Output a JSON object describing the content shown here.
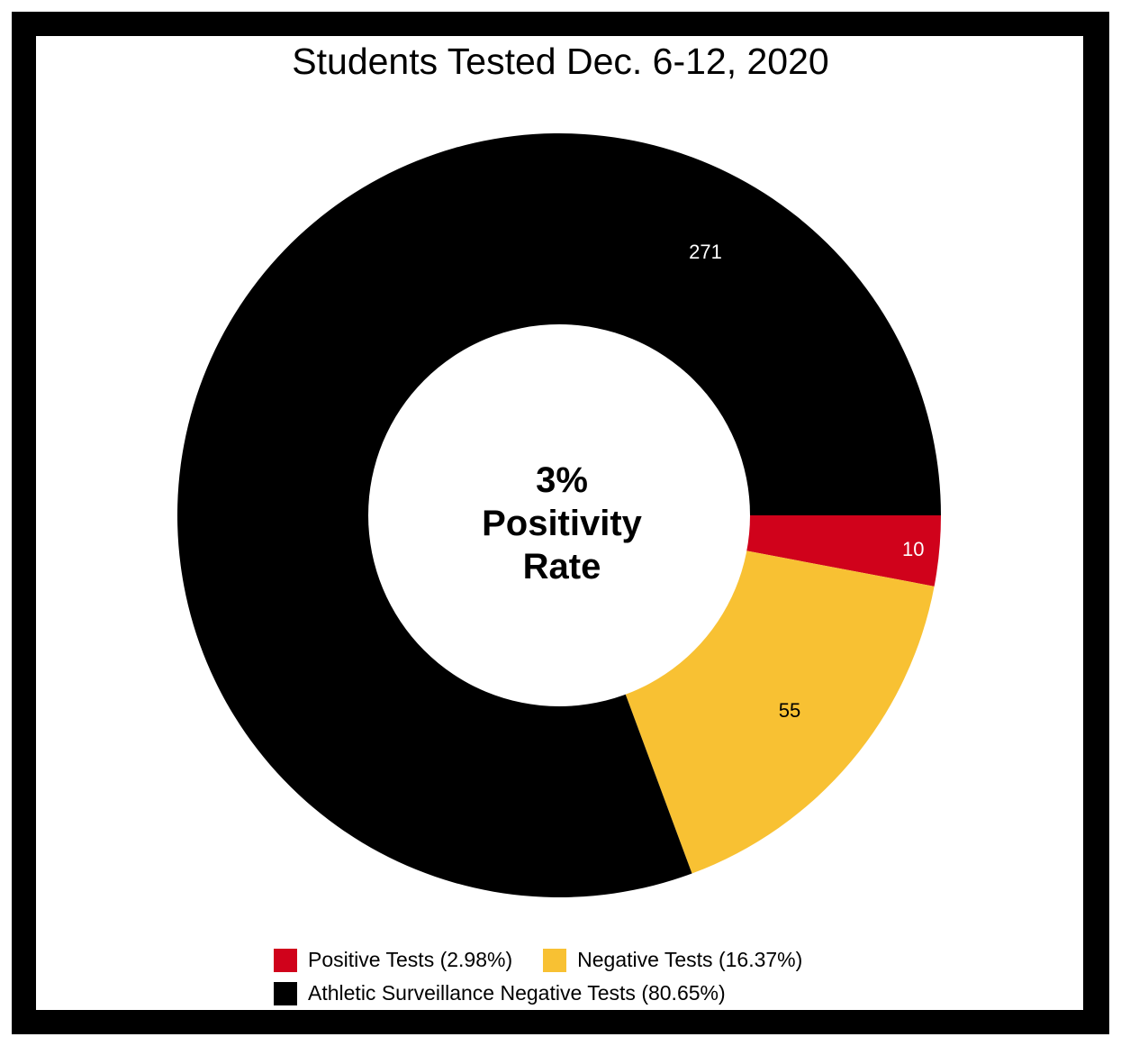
{
  "chart_data": {
    "type": "pie",
    "variant": "donut",
    "title": "Students Tested Dec. 6-12, 2020",
    "center_label": [
      "3%",
      "Positivity",
      "Rate"
    ],
    "slices": [
      {
        "label": "Positive Tests (2.98%)",
        "value": 10,
        "color": "#d0021b",
        "label_color": "#ffffff"
      },
      {
        "label": "Negative Tests (16.37%)",
        "value": 55,
        "color": "#f8c133",
        "label_color": "#000000"
      },
      {
        "label": "Athletic Surveillance Negative Tests (80.65%)",
        "value": 271,
        "color": "#000000",
        "label_color": "#ffffff"
      }
    ],
    "legend_position": "bottom"
  }
}
